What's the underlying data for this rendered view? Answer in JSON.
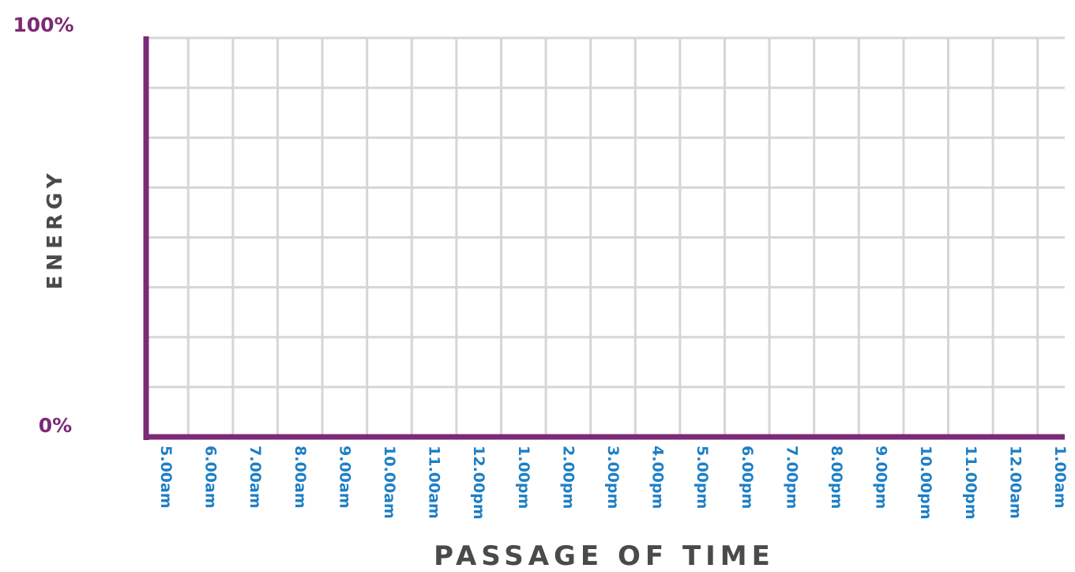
{
  "chart_data": {
    "type": "line",
    "title": "",
    "xlabel": "PASSAGE OF TIME",
    "ylabel": "ENERGY",
    "y_tick_labels": [
      "0%",
      "100%"
    ],
    "ylim": [
      0,
      100
    ],
    "y_unit": "%",
    "y_grid_divisions": 8,
    "categories": [
      "5.00am",
      "6.00am",
      "7.00am",
      "8.00am",
      "9.00am",
      "10.00am",
      "11.00am",
      "12.00pm",
      "1.00pm",
      "2.00pm",
      "3.00pm",
      "4.00pm",
      "5.00pm",
      "6.00pm",
      "7.00pm",
      "8.00pm",
      "9.00pm",
      "10.00pm",
      "11.00pm",
      "12.00am",
      "1.00am"
    ],
    "series": [],
    "grid": true,
    "colors": {
      "axis": "#7b2a75",
      "y_labels": "#7b2a75",
      "x_labels": "#1d7fc4",
      "grid": "#d6d6d6",
      "titles": "#4a4a4a"
    }
  }
}
